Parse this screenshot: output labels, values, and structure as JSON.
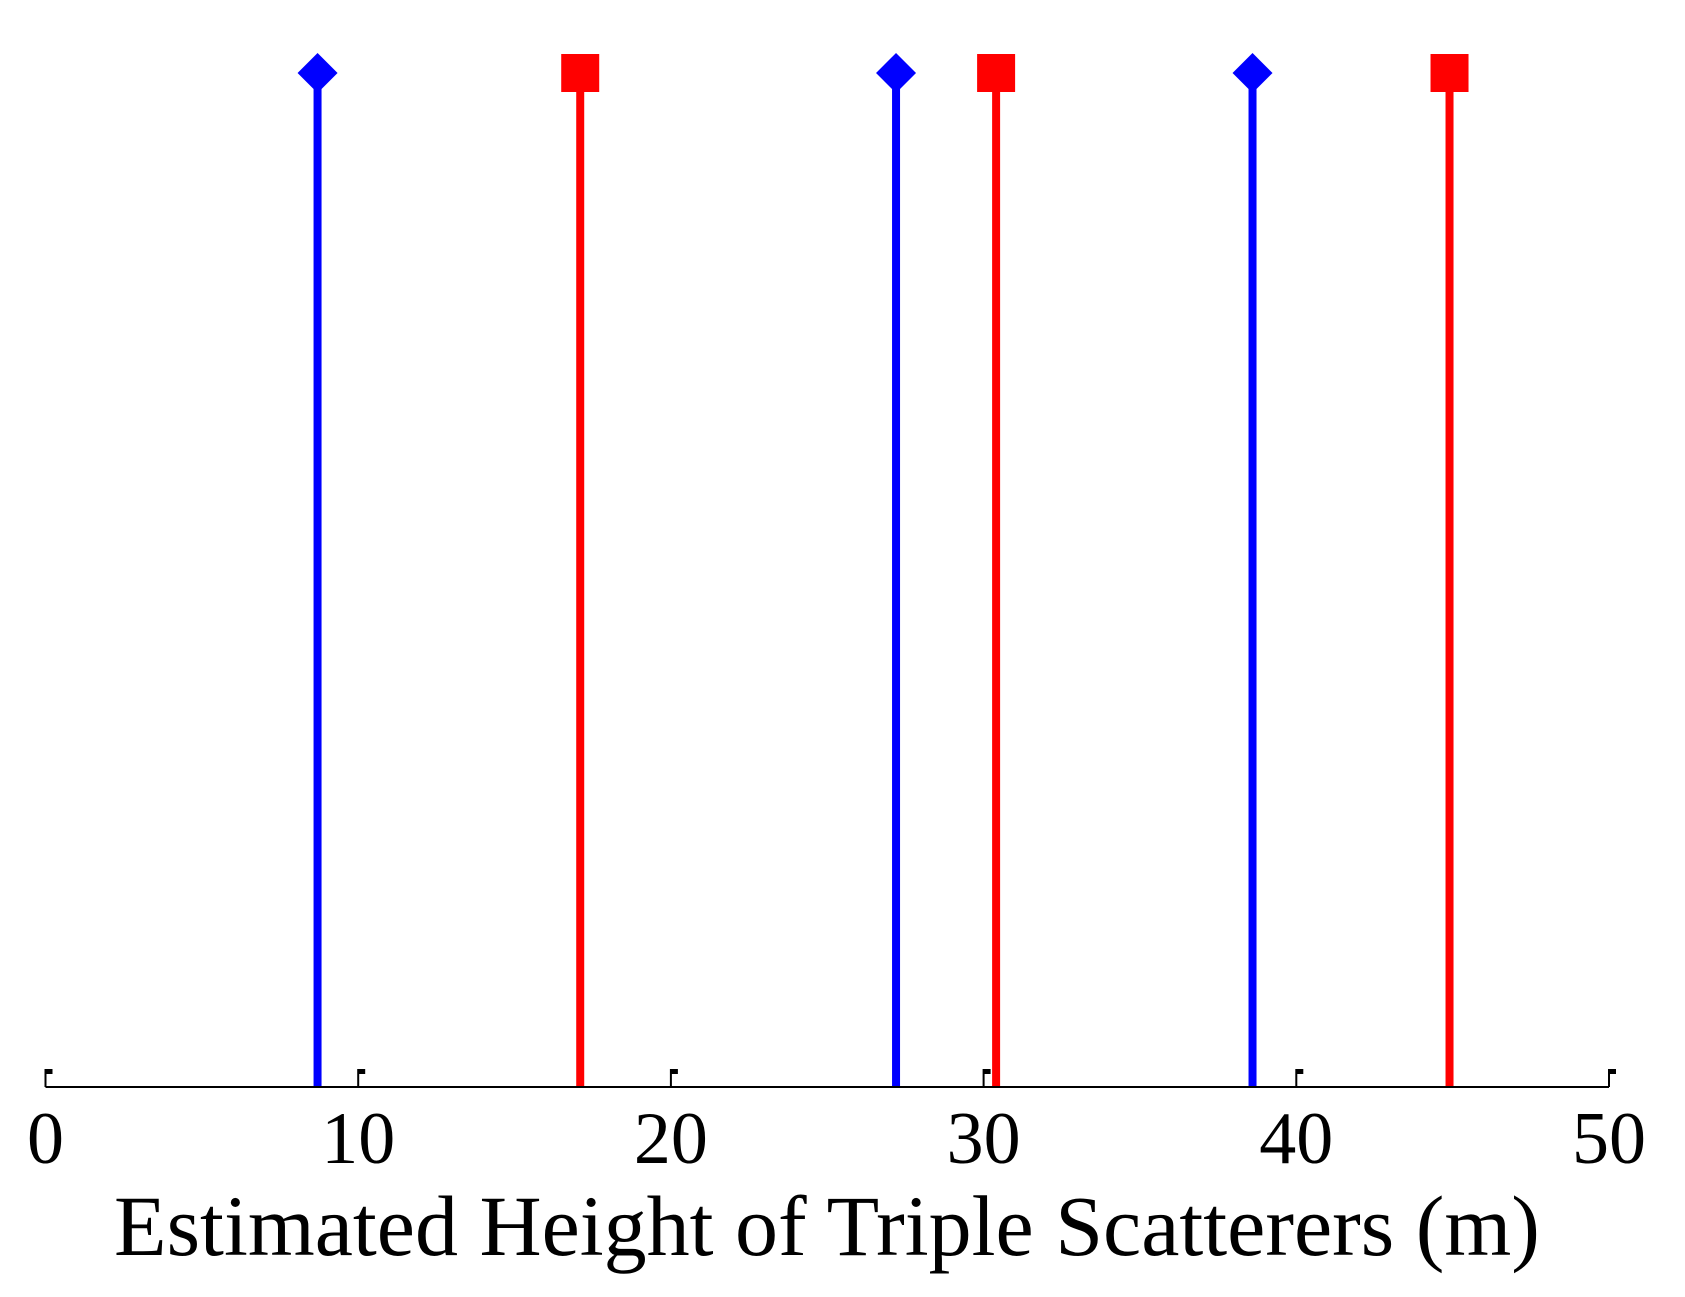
{
  "chart_data": {
    "type": "stem",
    "title": "",
    "xlabel": "Estimated Height of Triple Scatterers (m)",
    "ylabel": "",
    "xlim": [
      0,
      50
    ],
    "ylim": [
      0,
      1
    ],
    "x_ticks": [
      0,
      10,
      20,
      30,
      40,
      50
    ],
    "x_tick_labels": [
      "0",
      "10",
      "20",
      "30",
      "40",
      "50"
    ],
    "grid": false,
    "legend": null,
    "series": [
      {
        "name": "blue-diamond",
        "color": "#0000ff",
        "marker": "diamond",
        "x": [
          8.7,
          27.2,
          38.6
        ],
        "values": [
          1,
          1,
          1
        ]
      },
      {
        "name": "red-square",
        "color": "#ff0000",
        "marker": "square",
        "x": [
          17.1,
          30.4,
          44.9
        ],
        "values": [
          1,
          1,
          1
        ]
      }
    ]
  }
}
